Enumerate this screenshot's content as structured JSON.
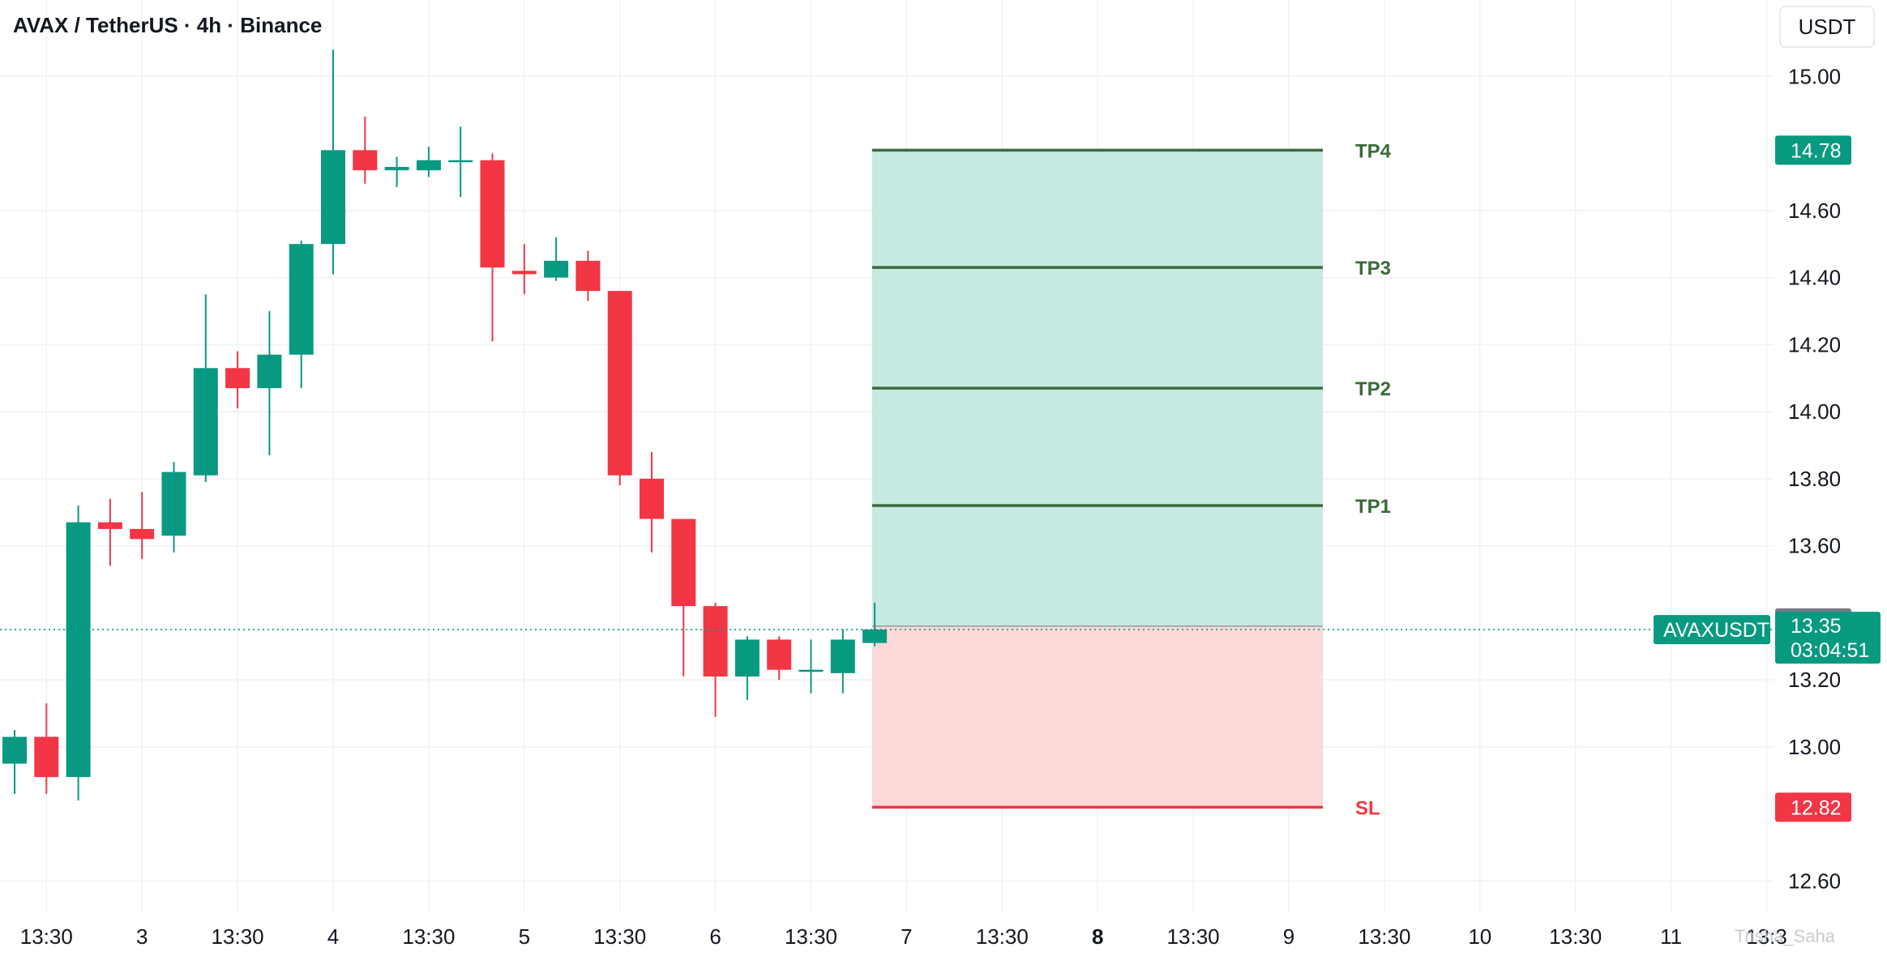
{
  "title": "AVAX / TetherUS · 4h · Binance",
  "currency_button": "USDT",
  "watermark": "Trisha_Saha",
  "colors": {
    "up": "#089981",
    "down": "#f23645",
    "tp_line": "#3a6b3a",
    "sl_line": "#f23645",
    "profit_zone": "#c6e9e1",
    "loss_zone": "#fcd8d8",
    "grey_tag": "#787b86"
  },
  "chart_data": {
    "type": "candlestick",
    "symbol": "AVAXUSDT",
    "timeframe": "4h",
    "y_ticks": [
      "15.00",
      "14.60",
      "14.40",
      "14.20",
      "14.00",
      "13.80",
      "13.60",
      "13.20",
      "13.00",
      "12.60"
    ],
    "x_ticks": [
      {
        "label": "13:30",
        "i": 1,
        "bold": false
      },
      {
        "label": "3",
        "i": 4,
        "bold": false
      },
      {
        "label": "13:30",
        "i": 7,
        "bold": false
      },
      {
        "label": "4",
        "i": 10,
        "bold": false
      },
      {
        "label": "13:30",
        "i": 13,
        "bold": false
      },
      {
        "label": "5",
        "i": 16,
        "bold": false
      },
      {
        "label": "13:30",
        "i": 19,
        "bold": false
      },
      {
        "label": "6",
        "i": 22,
        "bold": false
      },
      {
        "label": "13:30",
        "i": 25,
        "bold": false
      },
      {
        "label": "7",
        "i": 28,
        "bold": false
      },
      {
        "label": "13:30",
        "i": 31,
        "bold": false
      },
      {
        "label": "8",
        "i": 34,
        "bold": true
      },
      {
        "label": "13:30",
        "i": 37,
        "bold": false
      },
      {
        "label": "9",
        "i": 40,
        "bold": false
      },
      {
        "label": "13:30",
        "i": 43,
        "bold": false
      },
      {
        "label": "10",
        "i": 46,
        "bold": false
      },
      {
        "label": "13:30",
        "i": 49,
        "bold": false
      },
      {
        "label": "11",
        "i": 52,
        "bold": false
      },
      {
        "label": "13:3",
        "i": 55,
        "bold": false
      }
    ],
    "candles": [
      {
        "o": 12.95,
        "h": 13.05,
        "l": 12.86,
        "c": 13.03
      },
      {
        "o": 13.03,
        "h": 13.13,
        "l": 12.86,
        "c": 12.91
      },
      {
        "o": 12.91,
        "h": 13.72,
        "l": 12.84,
        "c": 13.67
      },
      {
        "o": 13.67,
        "h": 13.74,
        "l": 13.54,
        "c": 13.65
      },
      {
        "o": 13.65,
        "h": 13.76,
        "l": 13.56,
        "c": 13.62
      },
      {
        "o": 13.63,
        "h": 13.85,
        "l": 13.58,
        "c": 13.82
      },
      {
        "o": 13.81,
        "h": 14.35,
        "l": 13.79,
        "c": 14.13
      },
      {
        "o": 14.13,
        "h": 14.18,
        "l": 14.01,
        "c": 14.07
      },
      {
        "o": 14.07,
        "h": 14.3,
        "l": 13.87,
        "c": 14.17
      },
      {
        "o": 14.17,
        "h": 14.51,
        "l": 14.07,
        "c": 14.5
      },
      {
        "o": 14.5,
        "h": 15.08,
        "l": 14.41,
        "c": 14.78
      },
      {
        "o": 14.78,
        "h": 14.88,
        "l": 14.68,
        "c": 14.72
      },
      {
        "o": 14.72,
        "h": 14.76,
        "l": 14.67,
        "c": 14.73
      },
      {
        "o": 14.72,
        "h": 14.79,
        "l": 14.7,
        "c": 14.75
      },
      {
        "o": 14.75,
        "h": 14.85,
        "l": 14.64,
        "c": 14.75
      },
      {
        "o": 14.75,
        "h": 14.77,
        "l": 14.21,
        "c": 14.43
      },
      {
        "o": 14.42,
        "h": 14.5,
        "l": 14.35,
        "c": 14.41
      },
      {
        "o": 14.4,
        "h": 14.52,
        "l": 14.39,
        "c": 14.45
      },
      {
        "o": 14.45,
        "h": 14.48,
        "l": 14.33,
        "c": 14.36
      },
      {
        "o": 14.36,
        "h": 14.36,
        "l": 13.78,
        "c": 13.81
      },
      {
        "o": 13.8,
        "h": 13.88,
        "l": 13.58,
        "c": 13.68
      },
      {
        "o": 13.68,
        "h": 13.68,
        "l": 13.21,
        "c": 13.42
      },
      {
        "o": 13.42,
        "h": 13.43,
        "l": 13.09,
        "c": 13.21
      },
      {
        "o": 13.21,
        "h": 13.33,
        "l": 13.14,
        "c": 13.32
      },
      {
        "o": 13.32,
        "h": 13.33,
        "l": 13.2,
        "c": 13.23
      },
      {
        "o": 13.23,
        "h": 13.32,
        "l": 13.16,
        "c": 13.23
      },
      {
        "o": 13.22,
        "h": 13.35,
        "l": 13.16,
        "c": 13.32
      },
      {
        "o": 13.31,
        "h": 13.43,
        "l": 13.3,
        "c": 13.35
      }
    ],
    "levels": [
      {
        "label": "TP4",
        "price": 14.78,
        "kind": "tp"
      },
      {
        "label": "TP3",
        "price": 14.43,
        "kind": "tp"
      },
      {
        "label": "TP2",
        "price": 14.07,
        "kind": "tp"
      },
      {
        "label": "TP1",
        "price": 13.72,
        "kind": "tp"
      },
      {
        "label": "SL",
        "price": 12.82,
        "kind": "sl"
      }
    ],
    "entry_price": 13.36,
    "price_tags": {
      "tp4": "14.78",
      "entry": "13.36",
      "last": "13.35",
      "countdown": "03:04:51",
      "sl": "12.82"
    },
    "last_price": 13.35,
    "symbol_label": "AVAXUSDT"
  }
}
